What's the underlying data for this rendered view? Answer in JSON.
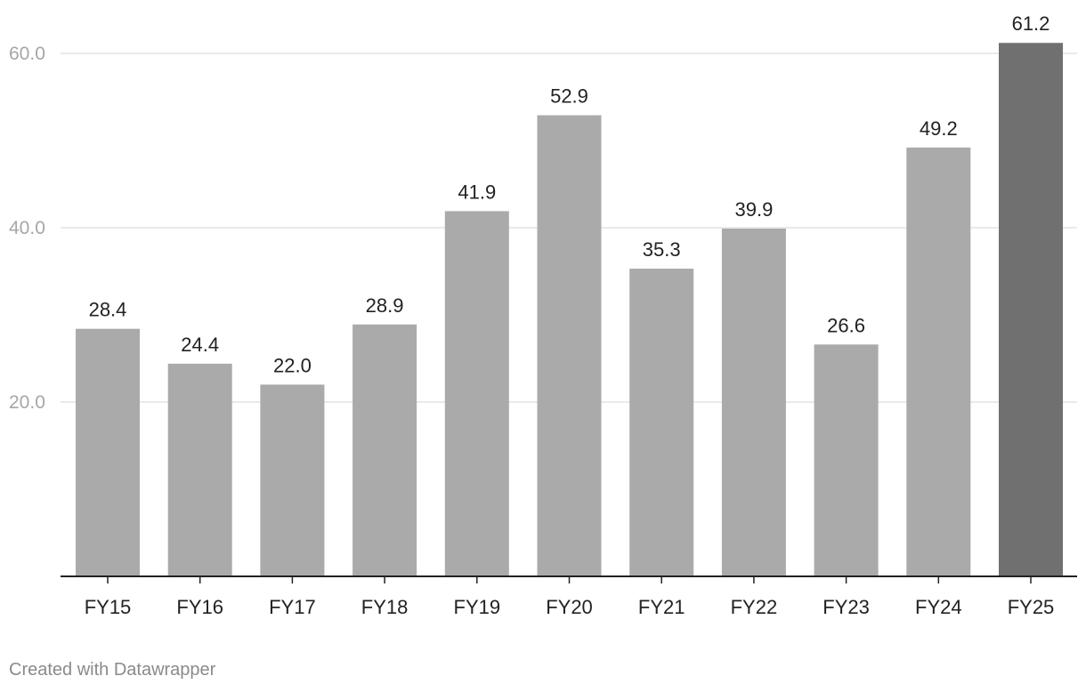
{
  "chart_data": {
    "type": "bar",
    "categories": [
      "FY15",
      "FY16",
      "FY17",
      "FY18",
      "FY19",
      "FY20",
      "FY21",
      "FY22",
      "FY23",
      "FY24",
      "FY25"
    ],
    "values": [
      28.4,
      24.4,
      22.0,
      28.9,
      41.9,
      52.9,
      35.3,
      39.9,
      26.6,
      49.2,
      61.2
    ],
    "value_labels": [
      "28.4",
      "24.4",
      "22.0",
      "28.9",
      "41.9",
      "52.9",
      "35.3",
      "39.9",
      "26.6",
      "49.2",
      "61.2"
    ],
    "y_ticks": [
      20,
      40,
      60
    ],
    "y_tick_labels": [
      "20.0",
      "40.0",
      "60.0"
    ],
    "ylim": [
      0,
      61.2
    ],
    "grid": true,
    "colors": {
      "bar": "#aaaaaa",
      "highlight_bar": "#707070",
      "gridline": "#e3e3e3",
      "baseline": "#222222"
    },
    "highlight_category": "FY25"
  },
  "footer": {
    "credit": "Created with Datawrapper"
  }
}
